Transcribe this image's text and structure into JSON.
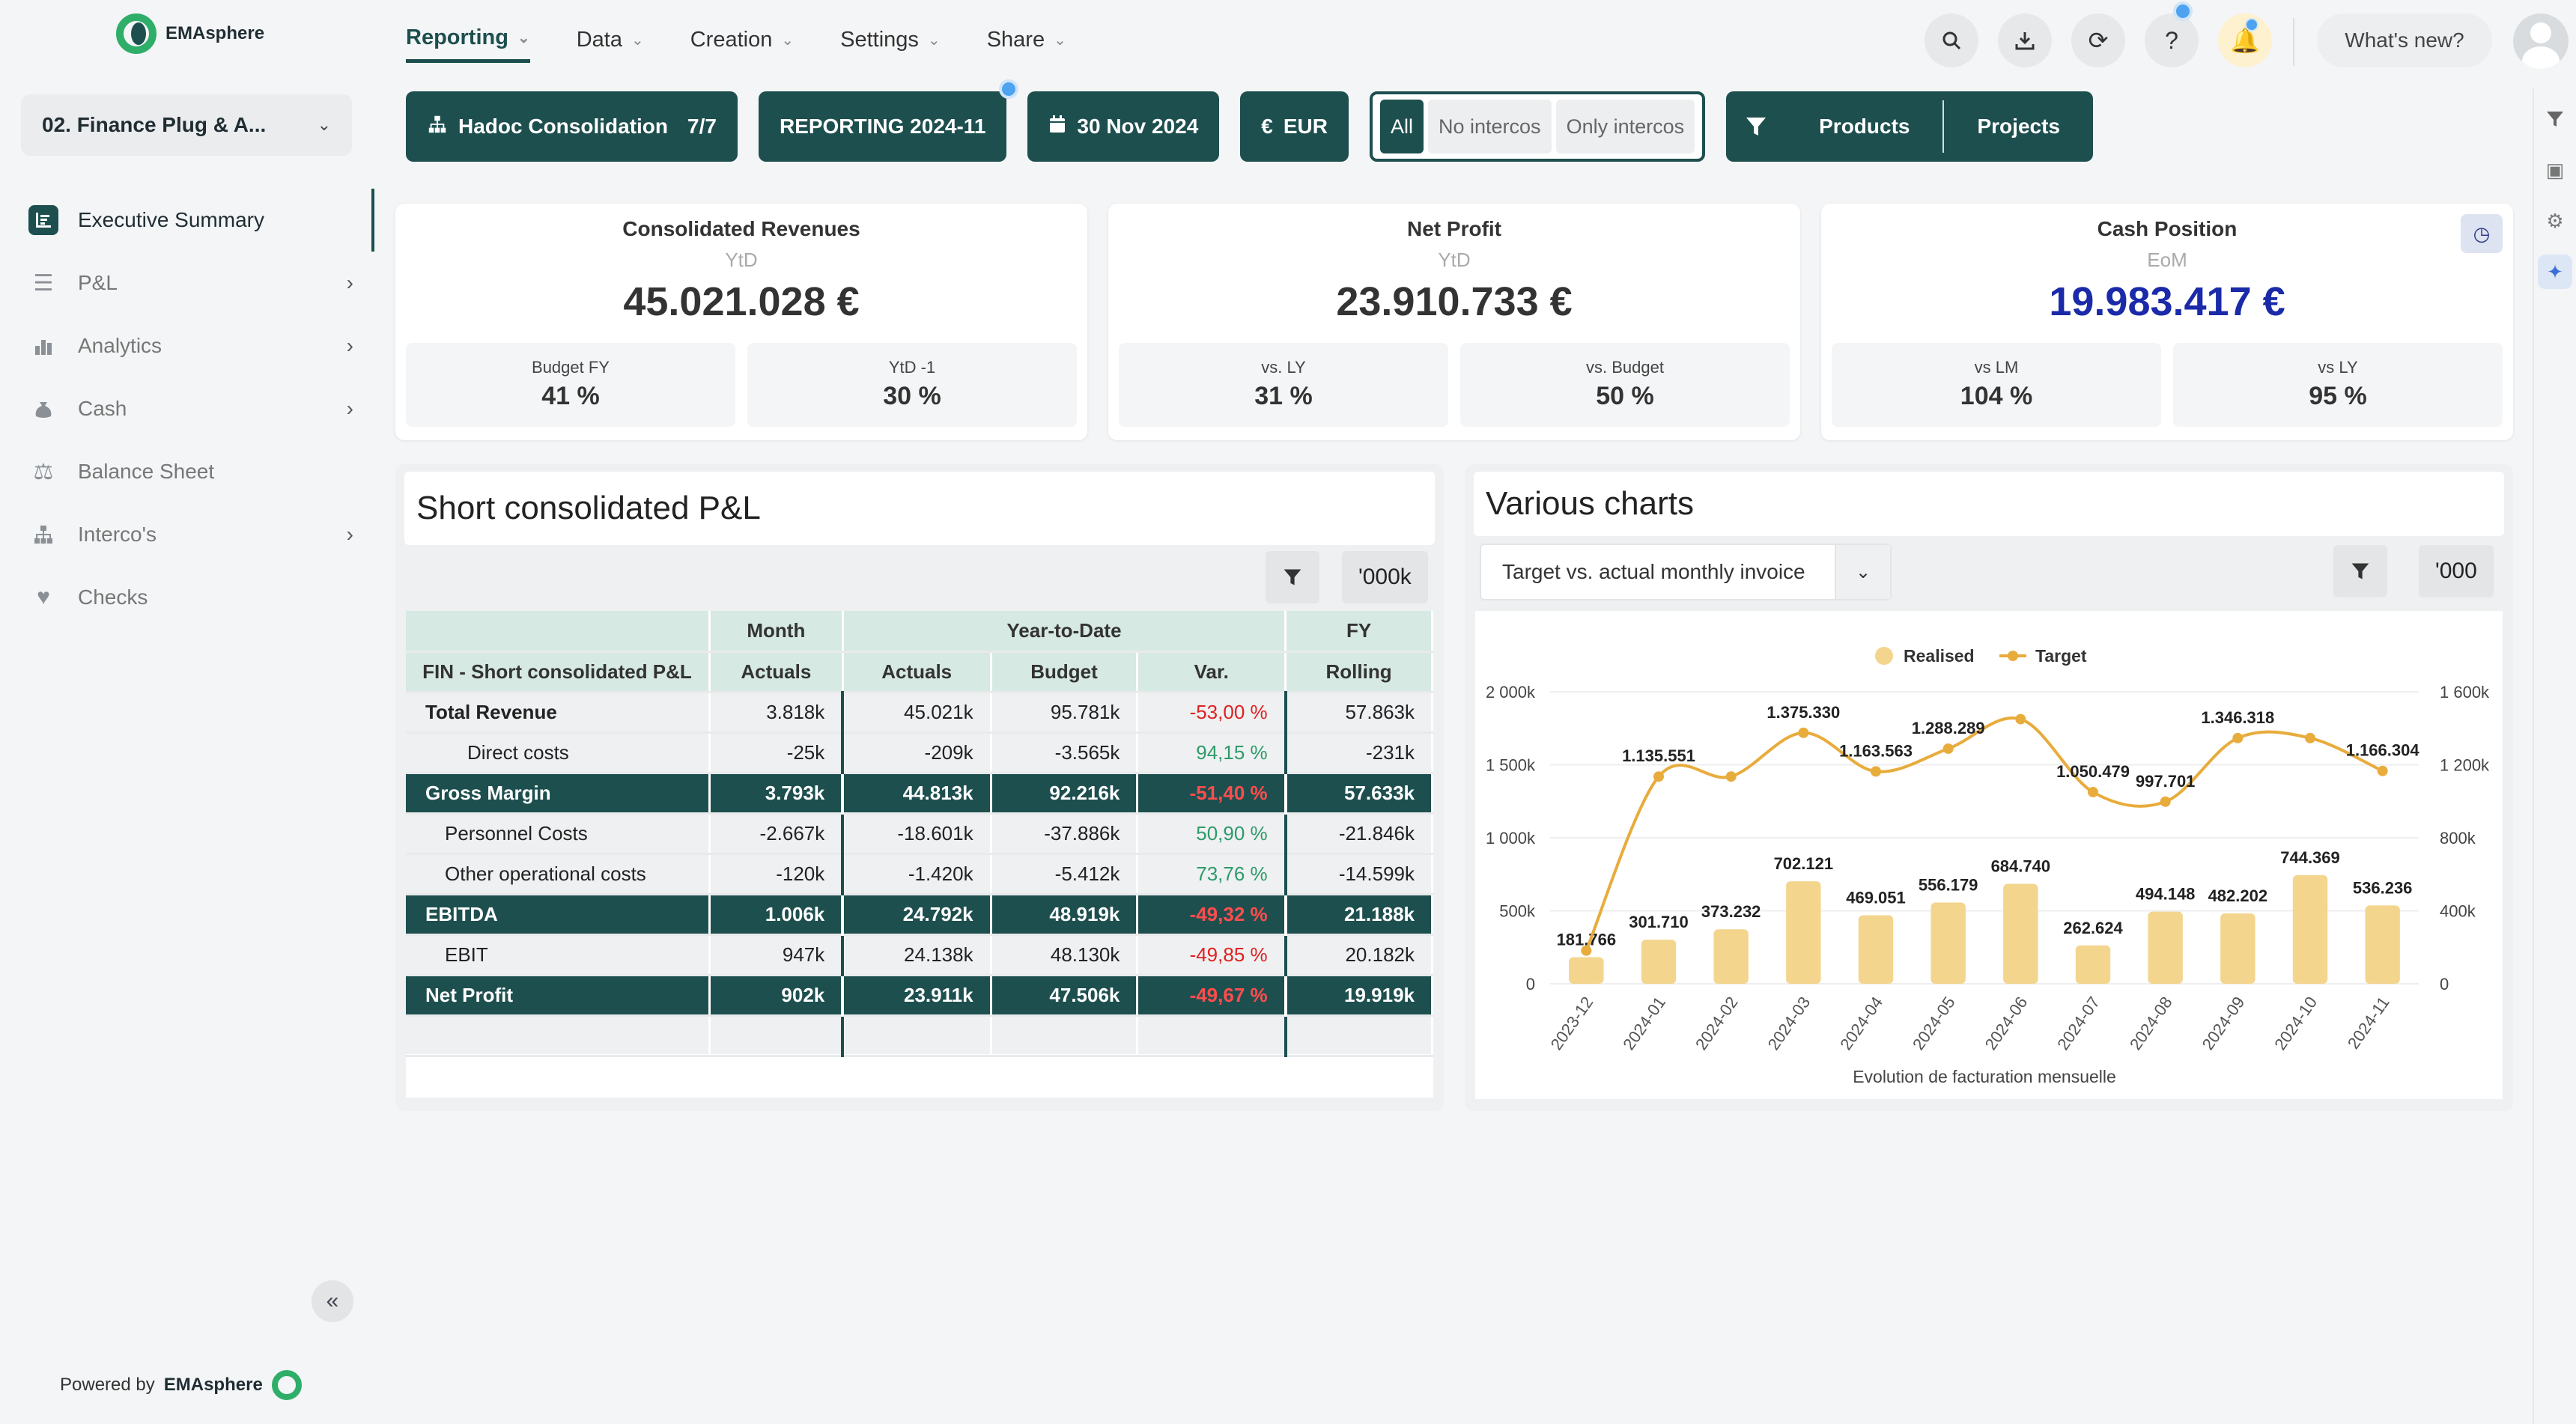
{
  "app": {
    "brand": "EMAsphere",
    "powered_by_prefix": "Powered by",
    "powered_by_brand": "EMAsphere"
  },
  "workspace": {
    "name": "02. Finance Plug & A..."
  },
  "sidebar": {
    "items": [
      {
        "label": "Executive Summary",
        "icon": "summary-icon",
        "active": true
      },
      {
        "label": "P&L",
        "icon": "list-icon",
        "has_children": true
      },
      {
        "label": "Analytics",
        "icon": "analytics-icon",
        "has_children": true
      },
      {
        "label": "Cash",
        "icon": "money-bag-icon",
        "has_children": true
      },
      {
        "label": "Balance Sheet",
        "icon": "scale-icon"
      },
      {
        "label": "Interco's",
        "icon": "hierarchy-icon",
        "has_children": true
      },
      {
        "label": "Checks",
        "icon": "heart-pulse-icon"
      }
    ]
  },
  "topnav": {
    "tabs": [
      {
        "label": "Reporting",
        "active": true
      },
      {
        "label": "Data"
      },
      {
        "label": "Creation"
      },
      {
        "label": "Settings"
      },
      {
        "label": "Share"
      }
    ],
    "whats_new": "What's new?"
  },
  "filters": {
    "consolidation": {
      "label": "Hadoc Consolidation",
      "count": "7/7"
    },
    "reporting": "REPORTING 2024-11",
    "date": "30 Nov 2024",
    "currency": "EUR",
    "interco": {
      "all": "All",
      "no": "No intercos",
      "only": "Only intercos"
    },
    "dimensions": {
      "a": "Products",
      "b": "Projects"
    }
  },
  "kpis": [
    {
      "title": "Consolidated Revenues",
      "period": "YtD",
      "value": "45.021.028 €",
      "sub": [
        {
          "label": "Budget FY",
          "value": "41 %"
        },
        {
          "label": "YtD -1",
          "value": "30 %"
        }
      ]
    },
    {
      "title": "Net Profit",
      "period": "YtD",
      "value": "23.910.733 €",
      "sub": [
        {
          "label": "vs. LY",
          "value": "31 %"
        },
        {
          "label": "vs. Budget",
          "value": "50 %"
        }
      ]
    },
    {
      "title": "Cash Position",
      "period": "EoM",
      "value": "19.983.417 €",
      "sub": [
        {
          "label": "vs LM",
          "value": "104 %"
        },
        {
          "label": "vs LY",
          "value": "95 %"
        }
      ]
    }
  ],
  "pl": {
    "title": "Short consolidated P&L",
    "unit": "'000k",
    "headers": {
      "row_label": "FIN - Short consolidated P&L",
      "month": "Month",
      "ytd": "Year-to-Date",
      "fy": "FY",
      "actuals_m": "Actuals",
      "actuals_y": "Actuals",
      "budget": "Budget",
      "var": "Var.",
      "rolling": "Rolling"
    },
    "rows": [
      {
        "label": "Total Revenue",
        "month": "3.818k",
        "ytd": "45.021k",
        "budget": "95.781k",
        "var": "-53,00 %",
        "fy": "57.863k",
        "style": "bold",
        "var_sign": "neg"
      },
      {
        "label": "Direct costs",
        "month": "-25k",
        "ytd": "-209k",
        "budget": "-3.565k",
        "var": "94,15 %",
        "fy": "-231k",
        "style": "indent2",
        "var_sign": "pos"
      },
      {
        "label": "Gross Margin",
        "month": "3.793k",
        "ytd": "44.813k",
        "budget": "92.216k",
        "var": "-51,40 %",
        "fy": "57.633k",
        "style": "hl",
        "var_sign": "neg"
      },
      {
        "label": "Personnel Costs",
        "month": "-2.667k",
        "ytd": "-18.601k",
        "budget": "-37.886k",
        "var": "50,90 %",
        "fy": "-21.846k",
        "style": "indent1",
        "var_sign": "pos"
      },
      {
        "label": "Other operational costs",
        "month": "-120k",
        "ytd": "-1.420k",
        "budget": "-5.412k",
        "var": "73,76 %",
        "fy": "-14.599k",
        "style": "indent1",
        "var_sign": "pos"
      },
      {
        "label": "EBITDA",
        "month": "1.006k",
        "ytd": "24.792k",
        "budget": "48.919k",
        "var": "-49,32 %",
        "fy": "21.188k",
        "style": "hl",
        "var_sign": "neg"
      },
      {
        "label": "EBIT",
        "month": "947k",
        "ytd": "24.138k",
        "budget": "48.130k",
        "var": "-49,85 %",
        "fy": "20.182k",
        "style": "indent1",
        "var_sign": "neg"
      },
      {
        "label": "Net Profit",
        "month": "902k",
        "ytd": "23.911k",
        "budget": "47.506k",
        "var": "-49,67 %",
        "fy": "19.919k",
        "style": "hl",
        "var_sign": "neg"
      }
    ]
  },
  "charts_panel": {
    "title": "Various charts",
    "selector": "Target vs. actual monthly invoice",
    "unit": "'000"
  },
  "chart_data": {
    "type": "bar",
    "title": "",
    "xlabel": "Evolution de facturation mensuelle",
    "categories": [
      "2023-12",
      "2024-01",
      "2024-02",
      "2024-03",
      "2024-04",
      "2024-05",
      "2024-06",
      "2024-07",
      "2024-08",
      "2024-09",
      "2024-10",
      "2024-11"
    ],
    "series": [
      {
        "name": "Realised",
        "type": "bar",
        "axis": "left",
        "color": "#f3d58e",
        "values": [
          181766,
          301710,
          373232,
          702121,
          469051,
          556179,
          684740,
          262624,
          494148,
          482202,
          744369,
          536236
        ],
        "labels": [
          "181.766",
          "301.710",
          "373.232",
          "702.121",
          "469.051",
          "556.179",
          "684.740",
          "262.624",
          "494.148",
          "482.202",
          "744.369",
          "536.236"
        ]
      },
      {
        "name": "Target",
        "type": "line",
        "axis": "right",
        "color": "#e8ac3c",
        "values": [
          181766,
          1135551,
          1135551,
          1375330,
          1163563,
          1288289,
          1450000,
          1050479,
          997701,
          1346318,
          1346318,
          1166304
        ],
        "labels": [
          "",
          "1.135.551",
          "",
          "1.375.330",
          "1.163.563",
          "1.288.289",
          "",
          "1.050.479",
          "997.701",
          "1.346.318",
          "",
          "1.166.304"
        ]
      }
    ],
    "left_axis": {
      "ticks": [
        "0",
        "500k",
        "1 000k",
        "1 500k",
        "2 000k"
      ],
      "range": [
        0,
        2000000
      ]
    },
    "right_axis": {
      "ticks": [
        "0",
        "400k",
        "800k",
        "1 200k",
        "1 600k"
      ],
      "range": [
        0,
        1600000
      ]
    },
    "legend": "top-center"
  }
}
